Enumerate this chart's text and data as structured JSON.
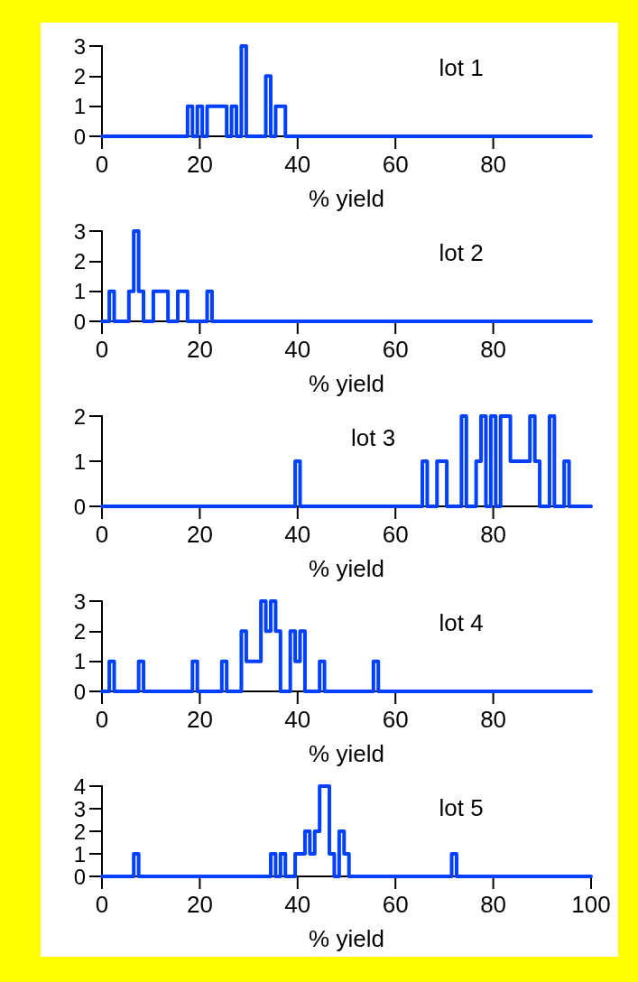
{
  "chart_data": [
    {
      "type": "step",
      "title": "lot 1",
      "xlabel": "% yield",
      "x": [
        0,
        1,
        2,
        3,
        4,
        5,
        6,
        7,
        8,
        9,
        10,
        11,
        12,
        13,
        14,
        15,
        16,
        17,
        18,
        19,
        20,
        21,
        22,
        23,
        24,
        25,
        26,
        27,
        28,
        29,
        30,
        31,
        32,
        33,
        34,
        35,
        36,
        37,
        38,
        39,
        40,
        41,
        42,
        43,
        44,
        45,
        46,
        47,
        48,
        49,
        50,
        51,
        52,
        53,
        54,
        55,
        56,
        57,
        58,
        59,
        60,
        61,
        62,
        63,
        64,
        65,
        66,
        67,
        68,
        69,
        70,
        71,
        72,
        73,
        74,
        75,
        76,
        77,
        78,
        79,
        80,
        81,
        82,
        83,
        84,
        85,
        86,
        87,
        88,
        89,
        90,
        91,
        92,
        93,
        94,
        95,
        96,
        97,
        98,
        99,
        100
      ],
      "series": [
        {
          "color": "#0040ff",
          "values": [
            0,
            0,
            0,
            0,
            0,
            0,
            0,
            0,
            0,
            0,
            0,
            0,
            0,
            0,
            0,
            0,
            0,
            0,
            1,
            0,
            1,
            0,
            1,
            1,
            1,
            1,
            0,
            1,
            0,
            3,
            0,
            0,
            0,
            0,
            2,
            0,
            1,
            1,
            0,
            0,
            0,
            0,
            0,
            0,
            0,
            0,
            0,
            0,
            0,
            0,
            0,
            0,
            0,
            0,
            0,
            0,
            0,
            0,
            0,
            0,
            0,
            0,
            0,
            0,
            0,
            0,
            0,
            0,
            0,
            0,
            0,
            0,
            0,
            0,
            0,
            0,
            0,
            0,
            0,
            0,
            0,
            0,
            0,
            0,
            0,
            0,
            0,
            0,
            0,
            0,
            0,
            0,
            0,
            0,
            0,
            0,
            0,
            0,
            0,
            0,
            0
          ]
        }
      ],
      "xlim": [
        0,
        100
      ],
      "xticks": [
        0,
        20,
        40,
        60,
        80
      ],
      "ylim": [
        0,
        3
      ],
      "yticks": [
        0,
        1,
        2,
        3
      ]
    },
    {
      "type": "step",
      "title": "lot 2",
      "xlabel": "% yield",
      "x": [
        0,
        1,
        2,
        3,
        4,
        5,
        6,
        7,
        8,
        9,
        10,
        11,
        12,
        13,
        14,
        15,
        16,
        17,
        18,
        19,
        20,
        21,
        22,
        23,
        24,
        25,
        26,
        27,
        28,
        29,
        30,
        31,
        32,
        33,
        34,
        35,
        36,
        37,
        38,
        39,
        40,
        41,
        42,
        43,
        44,
        45,
        46,
        47,
        48,
        49,
        50,
        51,
        52,
        53,
        54,
        55,
        56,
        57,
        58,
        59,
        60,
        61,
        62,
        63,
        64,
        65,
        66,
        67,
        68,
        69,
        70,
        71,
        72,
        73,
        74,
        75,
        76,
        77,
        78,
        79,
        80,
        81,
        82,
        83,
        84,
        85,
        86,
        87,
        88,
        89,
        90,
        91,
        92,
        93,
        94,
        95,
        96,
        97,
        98,
        99,
        100
      ],
      "series": [
        {
          "color": "#0040ff",
          "values": [
            0,
            0,
            1,
            0,
            0,
            0,
            1,
            3,
            1,
            0,
            0,
            1,
            1,
            1,
            0,
            0,
            1,
            1,
            0,
            0,
            0,
            0,
            1,
            0,
            0,
            0,
            0,
            0,
            0,
            0,
            0,
            0,
            0,
            0,
            0,
            0,
            0,
            0,
            0,
            0,
            0,
            0,
            0,
            0,
            0,
            0,
            0,
            0,
            0,
            0,
            0,
            0,
            0,
            0,
            0,
            0,
            0,
            0,
            0,
            0,
            0,
            0,
            0,
            0,
            0,
            0,
            0,
            0,
            0,
            0,
            0,
            0,
            0,
            0,
            0,
            0,
            0,
            0,
            0,
            0,
            0,
            0,
            0,
            0,
            0,
            0,
            0,
            0,
            0,
            0,
            0,
            0,
            0,
            0,
            0,
            0,
            0,
            0,
            0,
            0,
            0
          ]
        }
      ],
      "xlim": [
        0,
        100
      ],
      "xticks": [
        0,
        20,
        40,
        60,
        80
      ],
      "ylim": [
        0,
        3
      ],
      "yticks": [
        0,
        1,
        2,
        3
      ]
    },
    {
      "type": "step",
      "title": "lot 3",
      "xlabel": "% yield",
      "x": [
        0,
        1,
        2,
        3,
        4,
        5,
        6,
        7,
        8,
        9,
        10,
        11,
        12,
        13,
        14,
        15,
        16,
        17,
        18,
        19,
        20,
        21,
        22,
        23,
        24,
        25,
        26,
        27,
        28,
        29,
        30,
        31,
        32,
        33,
        34,
        35,
        36,
        37,
        38,
        39,
        40,
        41,
        42,
        43,
        44,
        45,
        46,
        47,
        48,
        49,
        50,
        51,
        52,
        53,
        54,
        55,
        56,
        57,
        58,
        59,
        60,
        61,
        62,
        63,
        64,
        65,
        66,
        67,
        68,
        69,
        70,
        71,
        72,
        73,
        74,
        75,
        76,
        77,
        78,
        79,
        80,
        81,
        82,
        83,
        84,
        85,
        86,
        87,
        88,
        89,
        90,
        91,
        92,
        93,
        94,
        95,
        96,
        97,
        98,
        99,
        100
      ],
      "series": [
        {
          "color": "#0040ff",
          "values": [
            0,
            0,
            0,
            0,
            0,
            0,
            0,
            0,
            0,
            0,
            0,
            0,
            0,
            0,
            0,
            0,
            0,
            0,
            0,
            0,
            0,
            0,
            0,
            0,
            0,
            0,
            0,
            0,
            0,
            0,
            0,
            0,
            0,
            0,
            0,
            0,
            0,
            0,
            0,
            0,
            1,
            0,
            0,
            0,
            0,
            0,
            0,
            0,
            0,
            0,
            0,
            0,
            0,
            0,
            0,
            0,
            0,
            0,
            0,
            0,
            0,
            0,
            0,
            0,
            0,
            0,
            1,
            0,
            0,
            1,
            1,
            0,
            0,
            0,
            2,
            0,
            0,
            1,
            2,
            0,
            2,
            0,
            2,
            2,
            1,
            1,
            1,
            1,
            2,
            1,
            0,
            0,
            2,
            0,
            0,
            1,
            0,
            0,
            0,
            0,
            0
          ]
        }
      ],
      "xlim": [
        0,
        100
      ],
      "xticks": [
        0,
        20,
        40,
        60,
        80
      ],
      "ylim": [
        0,
        2
      ],
      "yticks": [
        0,
        1,
        2
      ]
    },
    {
      "type": "step",
      "title": "lot 4",
      "xlabel": "% yield",
      "x": [
        0,
        1,
        2,
        3,
        4,
        5,
        6,
        7,
        8,
        9,
        10,
        11,
        12,
        13,
        14,
        15,
        16,
        17,
        18,
        19,
        20,
        21,
        22,
        23,
        24,
        25,
        26,
        27,
        28,
        29,
        30,
        31,
        32,
        33,
        34,
        35,
        36,
        37,
        38,
        39,
        40,
        41,
        42,
        43,
        44,
        45,
        46,
        47,
        48,
        49,
        50,
        51,
        52,
        53,
        54,
        55,
        56,
        57,
        58,
        59,
        60,
        61,
        62,
        63,
        64,
        65,
        66,
        67,
        68,
        69,
        70,
        71,
        72,
        73,
        74,
        75,
        76,
        77,
        78,
        79,
        80,
        81,
        82,
        83,
        84,
        85,
        86,
        87,
        88,
        89,
        90,
        91,
        92,
        93,
        94,
        95,
        96,
        97,
        98,
        99,
        100
      ],
      "series": [
        {
          "color": "#0040ff",
          "values": [
            0,
            0,
            1,
            0,
            0,
            0,
            0,
            0,
            1,
            0,
            0,
            0,
            0,
            0,
            0,
            0,
            0,
            0,
            0,
            1,
            0,
            0,
            0,
            0,
            0,
            1,
            0,
            0,
            0,
            2,
            1,
            1,
            1,
            3,
            2,
            3,
            2,
            0,
            0,
            2,
            1,
            2,
            0,
            0,
            0,
            1,
            0,
            0,
            0,
            0,
            0,
            0,
            0,
            0,
            0,
            0,
            1,
            0,
            0,
            0,
            0,
            0,
            0,
            0,
            0,
            0,
            0,
            0,
            0,
            0,
            0,
            0,
            0,
            0,
            0,
            0,
            0,
            0,
            0,
            0,
            0,
            0,
            0,
            0,
            0,
            0,
            0,
            0,
            0,
            0,
            0,
            0,
            0,
            0,
            0,
            0,
            0,
            0,
            0,
            0,
            0
          ]
        }
      ],
      "xlim": [
        0,
        100
      ],
      "xticks": [
        0,
        20,
        40,
        60,
        80
      ],
      "ylim": [
        0,
        3
      ],
      "yticks": [
        0,
        1,
        2,
        3
      ]
    },
    {
      "type": "step",
      "title": "lot 5",
      "xlabel": "% yield",
      "x": [
        0,
        1,
        2,
        3,
        4,
        5,
        6,
        7,
        8,
        9,
        10,
        11,
        12,
        13,
        14,
        15,
        16,
        17,
        18,
        19,
        20,
        21,
        22,
        23,
        24,
        25,
        26,
        27,
        28,
        29,
        30,
        31,
        32,
        33,
        34,
        35,
        36,
        37,
        38,
        39,
        40,
        41,
        42,
        43,
        44,
        45,
        46,
        47,
        48,
        49,
        50,
        51,
        52,
        53,
        54,
        55,
        56,
        57,
        58,
        59,
        60,
        61,
        62,
        63,
        64,
        65,
        66,
        67,
        68,
        69,
        70,
        71,
        72,
        73,
        74,
        75,
        76,
        77,
        78,
        79,
        80,
        81,
        82,
        83,
        84,
        85,
        86,
        87,
        88,
        89,
        90,
        91,
        92,
        93,
        94,
        95,
        96,
        97,
        98,
        99,
        100
      ],
      "series": [
        {
          "color": "#0040ff",
          "values": [
            0,
            0,
            0,
            0,
            0,
            0,
            0,
            1,
            0,
            0,
            0,
            0,
            0,
            0,
            0,
            0,
            0,
            0,
            0,
            0,
            0,
            0,
            0,
            0,
            0,
            0,
            0,
            0,
            0,
            0,
            0,
            0,
            0,
            0,
            0,
            1,
            0,
            1,
            0,
            0,
            1,
            1,
            2,
            1,
            2,
            4,
            4,
            1,
            0,
            2,
            1,
            0,
            0,
            0,
            0,
            0,
            0,
            0,
            0,
            0,
            0,
            0,
            0,
            0,
            0,
            0,
            0,
            0,
            0,
            0,
            0,
            0,
            1,
            0,
            0,
            0,
            0,
            0,
            0,
            0,
            0,
            0,
            0,
            0,
            0,
            0,
            0,
            0,
            0,
            0,
            0,
            0,
            0,
            0,
            0,
            0,
            0,
            0,
            0,
            0,
            0
          ]
        }
      ],
      "xlim": [
        0,
        100
      ],
      "xticks": [
        0,
        20,
        40,
        60,
        80,
        100
      ],
      "ylim": [
        0,
        4
      ],
      "yticks": [
        0,
        1,
        2,
        3,
        4
      ]
    }
  ]
}
